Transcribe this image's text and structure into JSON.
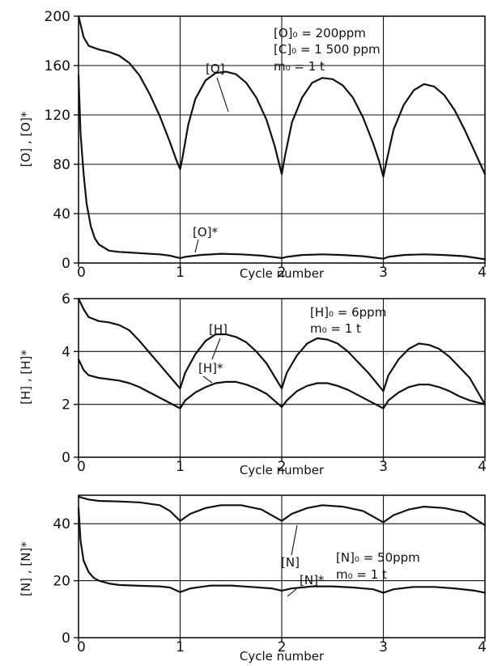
{
  "chart_data": [
    {
      "type": "line",
      "ylabel": "[O] , [O]*",
      "xlabel": "Cycle number",
      "xlim": [
        0,
        4
      ],
      "ylim": [
        0,
        200
      ],
      "x_ticks": [
        "0",
        "1",
        "2",
        "3",
        "4"
      ],
      "y_ticks": [
        "0",
        "40",
        "80",
        "120",
        "160",
        "200"
      ],
      "grid": true,
      "annotations": [
        "[O]₀ = 200ppm",
        "[C]₀ = 1 500 ppm",
        "m₀ = 1 t"
      ],
      "series": [
        {
          "name": "[O]",
          "x": [
            0,
            0.05,
            0.1,
            0.2,
            0.3,
            0.4,
            0.5,
            0.6,
            0.7,
            0.8,
            0.9,
            0.96,
            1.0,
            1.02,
            1.08,
            1.15,
            1.25,
            1.35,
            1.45,
            1.55,
            1.65,
            1.75,
            1.85,
            1.93,
            2.0,
            2.03,
            2.1,
            2.2,
            2.3,
            2.4,
            2.5,
            2.6,
            2.7,
            2.8,
            2.9,
            2.96,
            3.0,
            3.03,
            3.1,
            3.2,
            3.3,
            3.4,
            3.5,
            3.6,
            3.7,
            3.8,
            3.9,
            4.0
          ],
          "y": [
            200,
            183,
            176,
            173,
            171,
            168,
            162,
            152,
            137,
            119,
            98,
            84,
            76,
            84,
            112,
            133,
            148,
            154,
            155,
            153,
            146,
            134,
            116,
            95,
            72,
            86,
            114,
            134,
            146,
            150,
            149,
            144,
            134,
            118,
            97,
            82,
            70,
            82,
            108,
            128,
            140,
            145,
            143,
            136,
            124,
            108,
            90,
            72
          ]
        },
        {
          "name": "[O]*",
          "x": [
            0,
            0.02,
            0.05,
            0.08,
            0.12,
            0.16,
            0.2,
            0.3,
            0.4,
            0.5,
            0.6,
            0.7,
            0.8,
            0.9,
            1.0,
            1.05,
            1.2,
            1.4,
            1.6,
            1.8,
            2.0,
            2.05,
            2.2,
            2.4,
            2.6,
            2.8,
            3.0,
            3.05,
            3.2,
            3.4,
            3.6,
            3.8,
            4.0
          ],
          "y": [
            152,
            105,
            72,
            48,
            30,
            20,
            15,
            10,
            9,
            8.5,
            8,
            7.5,
            7,
            6,
            4,
            5,
            6.5,
            7.5,
            7,
            6,
            4,
            5,
            6.5,
            7,
            6.5,
            5.5,
            3.5,
            5,
            6.5,
            7,
            6.5,
            5.5,
            3
          ]
        }
      ]
    },
    {
      "type": "line",
      "ylabel": "[H] , [H]*",
      "xlabel": "Cycle number",
      "xlim": [
        0,
        4
      ],
      "ylim": [
        0,
        6
      ],
      "x_ticks": [
        "0",
        "1",
        "2",
        "3",
        "4"
      ],
      "y_ticks": [
        "0",
        "2",
        "4",
        "6"
      ],
      "grid": true,
      "annotations": [
        "[H]₀ = 6ppm",
        "m₀ = 1 t"
      ],
      "series": [
        {
          "name": "[H]",
          "x": [
            0,
            0.05,
            0.1,
            0.2,
            0.3,
            0.4,
            0.5,
            0.6,
            0.7,
            0.8,
            0.9,
            1.0,
            1.05,
            1.15,
            1.25,
            1.35,
            1.45,
            1.55,
            1.65,
            1.75,
            1.85,
            2.0,
            2.05,
            2.15,
            2.25,
            2.35,
            2.45,
            2.55,
            2.65,
            2.75,
            2.85,
            3.0,
            3.05,
            3.15,
            3.25,
            3.35,
            3.45,
            3.55,
            3.65,
            3.75,
            3.85,
            4.0
          ],
          "y": [
            6.0,
            5.6,
            5.3,
            5.15,
            5.1,
            5.0,
            4.8,
            4.4,
            3.95,
            3.5,
            3.05,
            2.6,
            3.2,
            3.9,
            4.4,
            4.65,
            4.65,
            4.55,
            4.35,
            4.0,
            3.55,
            2.6,
            3.2,
            3.85,
            4.3,
            4.5,
            4.45,
            4.3,
            4.0,
            3.6,
            3.2,
            2.5,
            3.1,
            3.7,
            4.1,
            4.3,
            4.25,
            4.1,
            3.8,
            3.4,
            3.0,
            2.0
          ]
        },
        {
          "name": "[H]*",
          "x": [
            0,
            0.05,
            0.1,
            0.2,
            0.3,
            0.4,
            0.5,
            0.6,
            0.7,
            0.8,
            0.9,
            1.0,
            1.05,
            1.15,
            1.25,
            1.35,
            1.45,
            1.55,
            1.65,
            1.75,
            1.85,
            2.0,
            2.05,
            2.15,
            2.25,
            2.35,
            2.45,
            2.55,
            2.65,
            2.75,
            2.85,
            3.0,
            3.05,
            3.15,
            3.25,
            3.35,
            3.45,
            3.55,
            3.65,
            3.75,
            3.85,
            4.0
          ],
          "y": [
            3.7,
            3.3,
            3.1,
            3.0,
            2.95,
            2.9,
            2.8,
            2.65,
            2.45,
            2.25,
            2.05,
            1.85,
            2.15,
            2.45,
            2.65,
            2.8,
            2.85,
            2.85,
            2.75,
            2.6,
            2.4,
            1.9,
            2.15,
            2.5,
            2.7,
            2.8,
            2.8,
            2.7,
            2.55,
            2.35,
            2.15,
            1.85,
            2.15,
            2.45,
            2.65,
            2.75,
            2.75,
            2.65,
            2.5,
            2.3,
            2.15,
            2.0
          ]
        }
      ]
    },
    {
      "type": "line",
      "ylabel": "[N] , [N]*",
      "xlabel": "Cycle number",
      "xlim": [
        0,
        4
      ],
      "ylim": [
        0,
        50
      ],
      "x_ticks": [
        "0",
        "1",
        "2",
        "3",
        "4"
      ],
      "y_ticks": [
        "0",
        "20",
        "40"
      ],
      "grid": true,
      "annotations": [
        "[N]₀ = 50ppm",
        "m₀ = 1 t"
      ],
      "series": [
        {
          "name": "[N]",
          "x": [
            0,
            0.1,
            0.2,
            0.4,
            0.6,
            0.8,
            0.9,
            1.0,
            1.1,
            1.25,
            1.4,
            1.6,
            1.8,
            2.0,
            2.1,
            2.25,
            2.4,
            2.6,
            2.8,
            3.0,
            3.1,
            3.25,
            3.4,
            3.6,
            3.8,
            4.0
          ],
          "y": [
            49.5,
            48.5,
            48.0,
            47.8,
            47.5,
            46.5,
            44.5,
            41.0,
            43.5,
            45.5,
            46.5,
            46.5,
            45.0,
            41.0,
            43.5,
            45.5,
            46.5,
            46.0,
            44.5,
            40.5,
            43.0,
            45.0,
            46.0,
            45.5,
            44.0,
            39.5
          ]
        },
        {
          "name": "[N]*",
          "x": [
            0,
            0.02,
            0.05,
            0.1,
            0.15,
            0.2,
            0.3,
            0.4,
            0.6,
            0.8,
            0.9,
            1.0,
            1.1,
            1.3,
            1.5,
            1.7,
            1.9,
            2.0,
            2.1,
            2.3,
            2.5,
            2.7,
            2.9,
            3.0,
            3.1,
            3.3,
            3.5,
            3.7,
            3.9,
            4.0
          ],
          "y": [
            45.5,
            34,
            27,
            23,
            21,
            20,
            19,
            18.5,
            18.2,
            18.0,
            17.6,
            16.0,
            17.3,
            18.3,
            18.3,
            17.8,
            17.3,
            16.5,
            17.3,
            18.0,
            18.0,
            17.6,
            17.0,
            15.8,
            17.0,
            17.8,
            17.8,
            17.3,
            16.5,
            15.8
          ]
        }
      ]
    }
  ]
}
